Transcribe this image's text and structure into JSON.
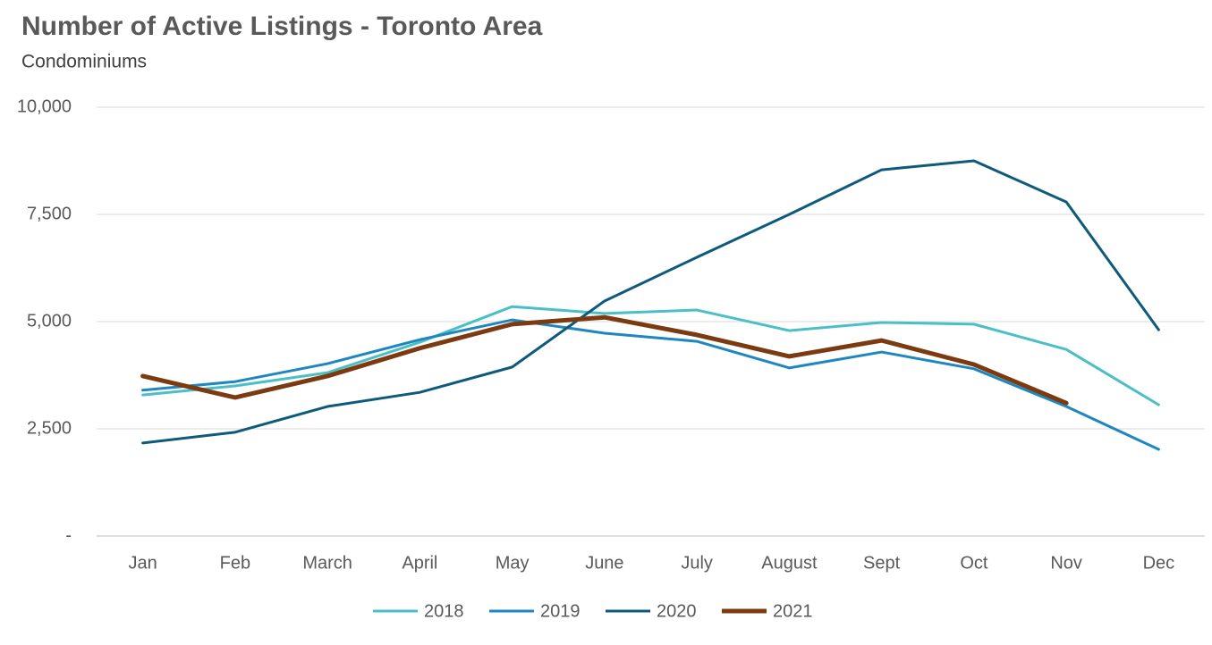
{
  "chart_data": {
    "type": "line",
    "title": "Number of Active Listings - Toronto Area",
    "subtitle": "Condominiums",
    "categories": [
      "Jan",
      "Feb",
      "March",
      "April",
      "May",
      "June",
      "July",
      "August",
      "Sept",
      "Oct",
      "Nov",
      "Dec"
    ],
    "series": [
      {
        "name": "2018",
        "color": "#4bbfc6",
        "line_width": 3,
        "values": [
          3290,
          3500,
          3810,
          4520,
          5350,
          5190,
          5270,
          4790,
          4980,
          4940,
          4350,
          3060
        ]
      },
      {
        "name": "2019",
        "color": "#1f87c0",
        "line_width": 3,
        "values": [
          3400,
          3600,
          4020,
          4580,
          5040,
          4730,
          4540,
          3920,
          4290,
          3900,
          3020,
          2020
        ]
      },
      {
        "name": "2020",
        "color": "#0d5a7a",
        "line_width": 3,
        "values": [
          2170,
          2420,
          3020,
          3350,
          3940,
          5480,
          6500,
          7500,
          8540,
          8750,
          7790,
          4810
        ]
      },
      {
        "name": "2021",
        "color": "#7b3a10",
        "line_width": 5,
        "values": [
          3730,
          3230,
          3730,
          4380,
          4940,
          5100,
          4690,
          4190,
          4560,
          4000,
          3100,
          null
        ]
      }
    ],
    "ylim": [
      0,
      10000
    ],
    "yticks": [
      {
        "value": 0,
        "label": "-"
      },
      {
        "value": 2500,
        "label": "2,500"
      },
      {
        "value": 5000,
        "label": "5,000"
      },
      {
        "value": 7500,
        "label": "7,500"
      },
      {
        "value": 10000,
        "label": "10,000"
      }
    ],
    "grid": true,
    "legend": "bottom"
  }
}
